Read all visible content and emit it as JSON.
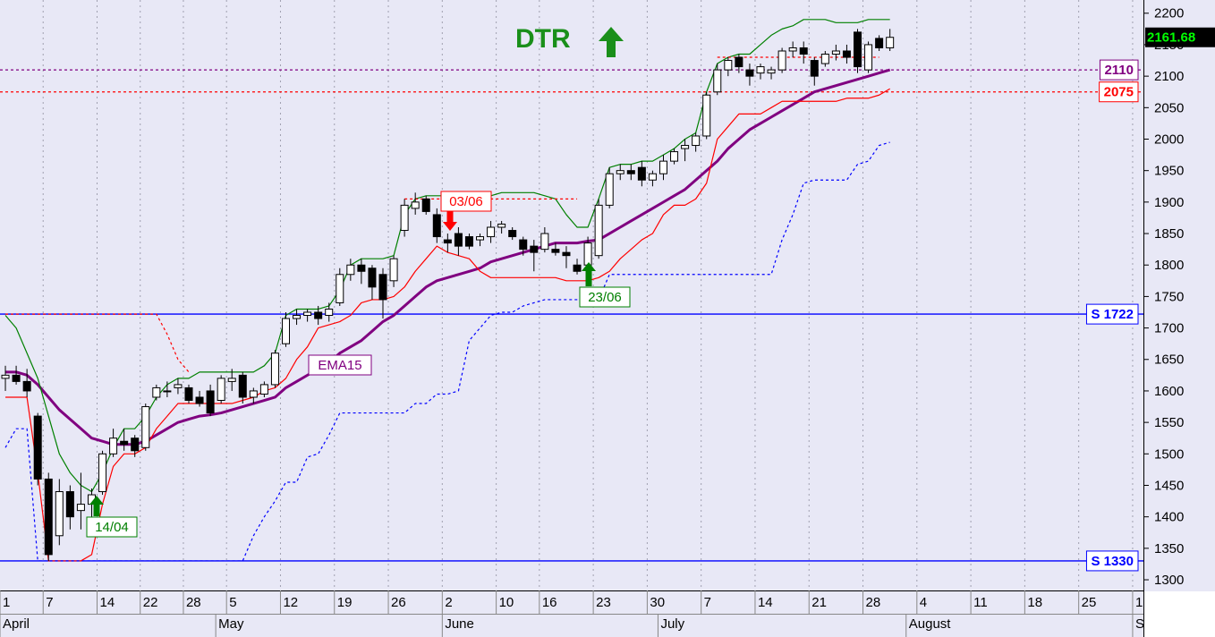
{
  "chart_data": {
    "type": "candlestick",
    "title": "DTR",
    "last_price": 2161.68,
    "ylim": [
      1283,
      2221
    ],
    "yticks": [
      1300,
      1350,
      1400,
      1450,
      1500,
      1550,
      1600,
      1650,
      1700,
      1750,
      1800,
      1850,
      1900,
      1950,
      2000,
      2050,
      2100,
      2150,
      2200
    ],
    "grid": true,
    "categories": [
      "1",
      null,
      null,
      null,
      "7",
      null,
      null,
      null,
      null,
      "14",
      null,
      null,
      null,
      "22",
      null,
      null,
      null,
      "28",
      null,
      null,
      null,
      "5",
      null,
      null,
      null,
      null,
      "12",
      null,
      null,
      null,
      null,
      "19",
      null,
      null,
      null,
      null,
      "26",
      null,
      null,
      null,
      null,
      "2",
      null,
      null,
      null,
      null,
      "10",
      null,
      null,
      null,
      "16",
      null,
      null,
      null,
      null,
      "23",
      null,
      null,
      null,
      null,
      "30",
      null,
      null,
      null,
      null,
      "7",
      null,
      null,
      null,
      null,
      "14",
      null,
      null,
      null,
      null,
      "21",
      null,
      null,
      null,
      null,
      "28",
      null,
      null,
      null,
      null,
      "4",
      null,
      null,
      null,
      null,
      "11",
      null,
      null,
      null,
      null,
      "18",
      null,
      null,
      null,
      null,
      "25",
      null,
      null,
      null,
      null,
      "1"
    ],
    "months": [
      "April",
      null,
      null,
      null,
      null,
      null,
      null,
      null,
      null,
      null,
      null,
      null,
      null,
      null,
      null,
      null,
      null,
      null,
      null,
      null,
      "May",
      null,
      null,
      null,
      null,
      null,
      null,
      null,
      null,
      null,
      null,
      null,
      null,
      null,
      null,
      null,
      null,
      null,
      null,
      null,
      null,
      "June",
      null,
      null,
      null,
      null,
      null,
      null,
      null,
      null,
      null,
      null,
      null,
      null,
      null,
      null,
      null,
      null,
      null,
      null,
      null,
      "July",
      null,
      null,
      null,
      null,
      null,
      null,
      null,
      null,
      null,
      null,
      null,
      null,
      null,
      null,
      null,
      null,
      null,
      null,
      null,
      null,
      null,
      null,
      "August",
      null,
      null,
      null,
      null,
      null,
      null,
      null,
      null,
      null,
      null,
      null,
      null,
      null,
      null,
      null,
      null,
      null,
      null,
      null,
      null,
      "September"
    ],
    "open": [
      1620,
      1625,
      1615,
      1560,
      1460,
      1370,
      1440,
      1410,
      1420,
      1440,
      1500,
      1520,
      1525,
      1510,
      1590,
      1600,
      1605,
      1605,
      1590,
      1600,
      1585,
      1615,
      1625,
      1590,
      1595,
      1610,
      1675,
      1715,
      1720,
      1725,
      1720,
      1740,
      1785,
      1800,
      1795,
      1785,
      1775,
      1855,
      1890,
      1905,
      1880,
      1840,
      1850,
      1845,
      1840,
      1845,
      1860,
      1855,
      1840,
      1830,
      1825,
      1825,
      1820,
      1800,
      1800,
      1815,
      1895,
      1945,
      1950,
      1955,
      1935,
      1945,
      1965,
      1985,
      1990,
      2005,
      2075,
      2110,
      2130,
      2110,
      2105,
      2105,
      2110,
      2140,
      2145,
      2125,
      2120,
      2135,
      2140,
      2170,
      2110,
      2160,
      2145,
      null,
      null,
      null,
      null,
      null,
      null,
      null,
      null,
      null,
      null,
      null,
      null,
      null,
      null,
      null,
      null,
      null,
      null,
      null,
      null,
      null,
      null,
      null
    ],
    "high": [
      1640,
      1640,
      1635,
      1565,
      1470,
      1460,
      1450,
      1470,
      1445,
      1505,
      1540,
      1540,
      1530,
      1580,
      1610,
      1615,
      1620,
      1610,
      1600,
      1610,
      1625,
      1635,
      1630,
      1605,
      1615,
      1665,
      1725,
      1730,
      1730,
      1735,
      1740,
      1795,
      1810,
      1810,
      1800,
      1795,
      1815,
      1905,
      1915,
      1910,
      1890,
      1850,
      1860,
      1850,
      1850,
      1870,
      1870,
      1860,
      1845,
      1840,
      1860,
      1835,
      1830,
      1810,
      1845,
      1905,
      1955,
      1960,
      1960,
      1965,
      1950,
      1975,
      1985,
      2000,
      2010,
      2075,
      2120,
      2130,
      2135,
      2120,
      2120,
      2115,
      2145,
      2155,
      2155,
      2130,
      2140,
      2150,
      2150,
      2175,
      2155,
      2165,
      2175,
      null,
      null,
      null,
      null,
      null,
      null,
      null,
      null,
      null,
      null,
      null,
      null,
      null,
      null,
      null,
      null,
      null,
      null,
      null,
      null,
      null,
      null,
      null
    ],
    "low": [
      1600,
      1610,
      1590,
      1450,
      1330,
      1355,
      1380,
      1380,
      1400,
      1435,
      1495,
      1505,
      1495,
      1505,
      1585,
      1590,
      1595,
      1580,
      1575,
      1560,
      1580,
      1600,
      1580,
      1580,
      1590,
      1605,
      1670,
      1705,
      1710,
      1705,
      1710,
      1735,
      1775,
      1770,
      1745,
      1715,
      1765,
      1845,
      1880,
      1880,
      1835,
      1820,
      1815,
      1825,
      1830,
      1835,
      1850,
      1840,
      1815,
      1790,
      1820,
      1815,
      1795,
      1785,
      1790,
      1810,
      1890,
      1935,
      1935,
      1925,
      1925,
      1935,
      1960,
      1965,
      1980,
      2000,
      2070,
      2100,
      2105,
      2085,
      2095,
      2095,
      2105,
      2130,
      2120,
      2085,
      2115,
      2125,
      2120,
      2105,
      2105,
      2140,
      2140,
      null,
      null,
      null,
      null,
      null,
      null,
      null,
      null,
      null,
      null,
      null,
      null,
      null,
      null,
      null,
      null,
      null,
      null,
      null,
      null,
      null,
      null,
      null
    ],
    "close": [
      1625,
      1615,
      1600,
      1460,
      1340,
      1440,
      1400,
      1420,
      1435,
      1500,
      1525,
      1515,
      1505,
      1575,
      1605,
      1600,
      1610,
      1585,
      1580,
      1565,
      1620,
      1620,
      1590,
      1600,
      1610,
      1660,
      1715,
      1720,
      1725,
      1715,
      1730,
      1785,
      1800,
      1790,
      1765,
      1745,
      1810,
      1895,
      1900,
      1885,
      1845,
      1835,
      1830,
      1830,
      1845,
      1860,
      1865,
      1845,
      1825,
      1820,
      1850,
      1820,
      1815,
      1790,
      1835,
      1895,
      1945,
      1950,
      1945,
      1935,
      1945,
      1965,
      1980,
      1990,
      2005,
      2070,
      2110,
      2125,
      2115,
      2100,
      2115,
      2110,
      2140,
      2145,
      2135,
      2100,
      2135,
      2140,
      2130,
      2115,
      2150,
      2145,
      2161.68,
      null,
      null,
      null,
      null,
      null,
      null,
      null,
      null,
      null,
      null,
      null,
      null,
      null,
      null,
      null,
      null,
      null,
      null,
      null,
      null,
      null,
      null,
      null
    ],
    "lines": [
      {
        "name": "EMA15",
        "color": "#800080",
        "dashed": false,
        "values": [
          1630,
          1630,
          1625,
          1610,
          1590,
          1570,
          1555,
          1540,
          1525,
          1520,
          1515,
          1515,
          1515,
          1520,
          1530,
          1540,
          1550,
          1555,
          1560,
          1562,
          1565,
          1570,
          1575,
          1580,
          1585,
          1590,
          1605,
          1615,
          1625,
          1635,
          1645,
          1660,
          1670,
          1680,
          1695,
          1710,
          1720,
          1735,
          1750,
          1765,
          1775,
          1780,
          1785,
          1790,
          1795,
          1805,
          1810,
          1815,
          1820,
          1825,
          1830,
          1835,
          1835,
          1835,
          1838,
          1840,
          1850,
          1860,
          1870,
          1880,
          1890,
          1900,
          1910,
          1920,
          1935,
          1950,
          1965,
          1985,
          2000,
          2015,
          2025,
          2035,
          2045,
          2055,
          2065,
          2075,
          2080,
          2085,
          2090,
          2095,
          2100,
          2105,
          2110,
          null,
          null,
          null,
          null,
          null,
          null,
          null,
          null,
          null,
          null,
          null,
          null,
          null,
          null,
          null,
          null,
          null,
          null,
          null,
          null,
          null,
          null,
          null
        ]
      },
      {
        "color": "#008000",
        "dashed": false,
        "values": [
          1720,
          1700,
          1660,
          1620,
          1560,
          1500,
          1470,
          1450,
          1440,
          1470,
          1510,
          1540,
          1540,
          1560,
          1590,
          1610,
          1620,
          1620,
          1630,
          1630,
          1630,
          1630,
          1630,
          1630,
          1640,
          1660,
          1720,
          1730,
          1730,
          1730,
          1735,
          1760,
          1800,
          1810,
          1810,
          1810,
          1815,
          1880,
          1905,
          1910,
          1910,
          1910,
          1910,
          1910,
          1910,
          1910,
          1915,
          1915,
          1915,
          1915,
          1910,
          1905,
          1880,
          1860,
          1860,
          1905,
          1955,
          1960,
          1960,
          1965,
          1965,
          1975,
          1985,
          2000,
          2010,
          2075,
          2120,
          2130,
          2135,
          2135,
          2150,
          2165,
          2175,
          2180,
          2190,
          2190,
          2190,
          2185,
          2185,
          2185,
          2190,
          2190,
          2190,
          null,
          null,
          null,
          null,
          null,
          null,
          null,
          null,
          null,
          null,
          null,
          null,
          null,
          null,
          null,
          null,
          null,
          null,
          null,
          null,
          null,
          null,
          null
        ]
      },
      {
        "color": "#ff0000",
        "dashed": false,
        "values": [
          1590,
          1590,
          1590,
          1470,
          1330,
          1330,
          1330,
          1330,
          1340,
          1420,
          1480,
          1500,
          1500,
          1510,
          1540,
          1560,
          1580,
          1580,
          1580,
          1580,
          1580,
          1580,
          1585,
          1590,
          1600,
          1605,
          1620,
          1650,
          1670,
          1700,
          1705,
          1710,
          1720,
          1740,
          1745,
          1745,
          1750,
          1765,
          1790,
          1810,
          1830,
          1820,
          1815,
          1810,
          1790,
          1780,
          1780,
          1780,
          1780,
          1780,
          1780,
          1780,
          1775,
          1775,
          1775,
          1780,
          1790,
          1810,
          1825,
          1840,
          1850,
          1880,
          1895,
          1895,
          1905,
          1930,
          2000,
          2020,
          2040,
          2040,
          2040,
          2050,
          2060,
          2060,
          2060,
          2060,
          2060,
          2060,
          2065,
          2065,
          2065,
          2070,
          2080,
          null,
          null,
          null,
          null,
          null,
          null,
          null,
          null,
          null,
          null,
          null,
          null,
          null,
          null,
          null,
          null,
          null,
          null,
          null,
          null,
          null,
          null,
          null
        ]
      },
      {
        "color": "#0000ff",
        "dashed": true,
        "values": [
          1510,
          1540,
          1540,
          1330,
          1330,
          1330,
          1330,
          1330,
          1330,
          1330,
          1330,
          1330,
          1330,
          1330,
          1330,
          1330,
          1330,
          1330,
          1330,
          1330,
          1330,
          1330,
          1330,
          1370,
          1400,
          1425,
          1455,
          1455,
          1495,
          1500,
          1530,
          1565,
          1565,
          1565,
          1565,
          1565,
          1565,
          1565,
          1580,
          1580,
          1595,
          1595,
          1600,
          1680,
          1700,
          1720,
          1725,
          1725,
          1735,
          1740,
          1745,
          1745,
          1745,
          1745,
          1745,
          1745,
          1785,
          1785,
          1785,
          1785,
          1785,
          1785,
          1785,
          1785,
          1785,
          1785,
          1785,
          1785,
          1785,
          1785,
          1785,
          1785,
          1840,
          1880,
          1930,
          1935,
          1935,
          1935,
          1935,
          1960,
          1965,
          1990,
          1995,
          null,
          null,
          null,
          null,
          null,
          null,
          null,
          null,
          null,
          null,
          null,
          null,
          null,
          null,
          null,
          null,
          null,
          null,
          null,
          null,
          null,
          null,
          null
        ]
      },
      {
        "color": "#ff0000",
        "dashed": true,
        "values": [
          1722,
          1722,
          1722,
          1722,
          1722,
          1722,
          1722,
          1722,
          1722,
          1722,
          1722,
          1722,
          1722,
          1722,
          1722,
          1690,
          1650,
          1630,
          null,
          null,
          null,
          null,
          null,
          null,
          null,
          null,
          null,
          null,
          null,
          null,
          null,
          null,
          null,
          null,
          null,
          null,
          null,
          1905,
          1905,
          1905,
          1905,
          1905,
          1905,
          1905,
          1905,
          1905,
          1905,
          1905,
          1905,
          1905,
          1905,
          1905,
          1905,
          1905,
          null,
          null,
          null,
          null,
          null,
          null,
          null,
          null,
          null,
          null,
          null,
          null,
          2130,
          2130,
          2130,
          2130,
          2130,
          2130,
          2130,
          2130,
          2130,
          2130,
          2130,
          2130,
          2130,
          2130,
          2130,
          2130,
          null,
          null,
          null,
          null,
          null,
          null,
          null,
          null,
          null,
          null,
          null,
          null,
          null,
          null,
          null,
          null,
          null,
          null,
          null,
          null,
          null,
          null,
          null
        ]
      }
    ],
    "levels": [
      {
        "value": 1722,
        "label": "S 1722",
        "color": "#0000ff",
        "dashed": false
      },
      {
        "value": 1330,
        "label": "S 1330",
        "color": "#0000ff",
        "dashed": false
      },
      {
        "value": 2110,
        "label": "2110",
        "color": "#800080",
        "dashed": true
      },
      {
        "value": 2075,
        "label": "2075",
        "color": "#ff0000",
        "dashed": true
      }
    ],
    "signals": [
      {
        "label": "14/04",
        "direction": "up",
        "color": "#008000"
      },
      {
        "label": "03/06",
        "direction": "down",
        "color": "#ff0000"
      },
      {
        "label": "23/06",
        "direction": "up",
        "color": "#008000"
      }
    ]
  }
}
